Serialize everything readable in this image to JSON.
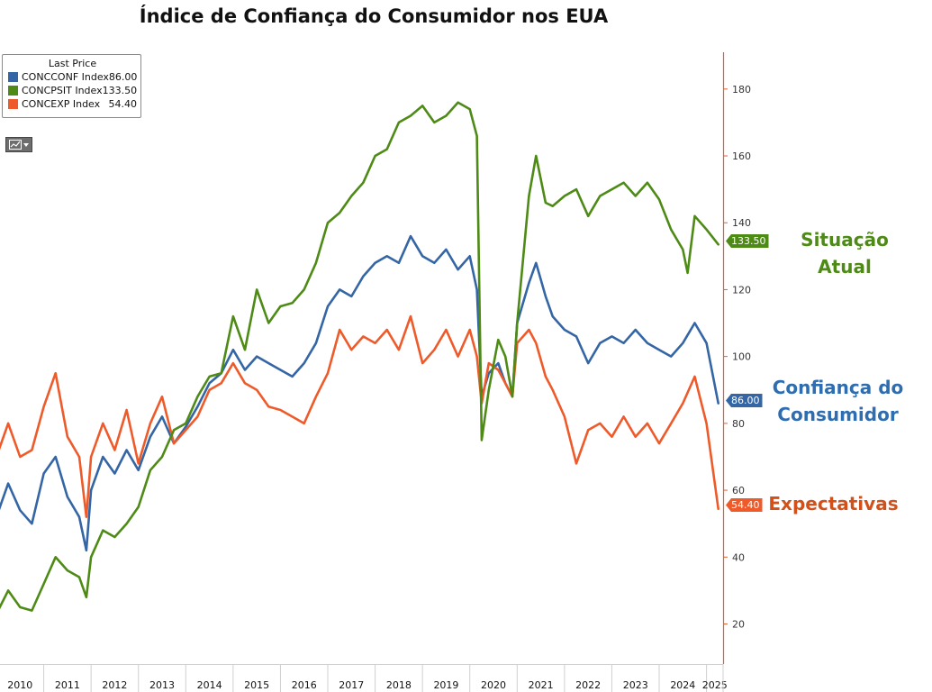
{
  "title": "Índice de Confiança do Consumidor nos EUA",
  "legend": {
    "header": "Last Price",
    "items": [
      {
        "name": "CONCCONF Index",
        "value": "86.00",
        "color": "#3465a4"
      },
      {
        "name": "CONCPSIT Index",
        "value": "133.50",
        "color": "#4e8a16"
      },
      {
        "name": "CONCEXP Index",
        "value": "54.40",
        "color": "#ee5a2a"
      }
    ]
  },
  "toolbar": {
    "chart_type_icon": "line-chart-icon"
  },
  "annotations": {
    "situacao": "Situação Atual",
    "confianca_line1": "Confiança do",
    "confianca_line2": "Consumidor",
    "expectativas": "Expectativas"
  },
  "colors": {
    "axis": "#ee5a2a",
    "grid": "#d0d0d0",
    "label_green": "#4e8a16",
    "label_blue": "#2e6db0",
    "label_orange": "#d2501a"
  },
  "chart_data": {
    "type": "line",
    "title": "Índice de Confiança do Consumidor nos EUA",
    "x_ticks": [
      "2010",
      "2011",
      "2012",
      "2013",
      "2014",
      "2015",
      "2016",
      "2017",
      "2018",
      "2019",
      "2020",
      "2021",
      "2022",
      "2023",
      "2024",
      "2025"
    ],
    "xlim": [
      2010.0,
      2025.35
    ],
    "y_ticks": [
      20,
      40,
      60,
      80,
      100,
      120,
      140,
      160,
      180
    ],
    "ylim": [
      8,
      191
    ],
    "series": [
      {
        "name": "CONCPSIT Index",
        "color": "#4e8a16",
        "last_value": "133.50",
        "points": [
          [
            2010.0,
            23
          ],
          [
            2010.25,
            30
          ],
          [
            2010.5,
            25
          ],
          [
            2010.75,
            24
          ],
          [
            2011.0,
            32
          ],
          [
            2011.25,
            40
          ],
          [
            2011.5,
            36
          ],
          [
            2011.75,
            34
          ],
          [
            2011.9,
            28
          ],
          [
            2012.0,
            40
          ],
          [
            2012.25,
            48
          ],
          [
            2012.5,
            46
          ],
          [
            2012.75,
            50
          ],
          [
            2013.0,
            55
          ],
          [
            2013.25,
            66
          ],
          [
            2013.5,
            70
          ],
          [
            2013.75,
            78
          ],
          [
            2014.0,
            80
          ],
          [
            2014.25,
            88
          ],
          [
            2014.5,
            94
          ],
          [
            2014.75,
            95
          ],
          [
            2015.0,
            112
          ],
          [
            2015.25,
            102
          ],
          [
            2015.5,
            120
          ],
          [
            2015.75,
            110
          ],
          [
            2016.0,
            115
          ],
          [
            2016.25,
            116
          ],
          [
            2016.5,
            120
          ],
          [
            2016.75,
            128
          ],
          [
            2017.0,
            140
          ],
          [
            2017.25,
            143
          ],
          [
            2017.5,
            148
          ],
          [
            2017.75,
            152
          ],
          [
            2018.0,
            160
          ],
          [
            2018.25,
            162
          ],
          [
            2018.5,
            170
          ],
          [
            2018.75,
            172
          ],
          [
            2019.0,
            175
          ],
          [
            2019.25,
            170
          ],
          [
            2019.5,
            172
          ],
          [
            2019.75,
            176
          ],
          [
            2020.0,
            174
          ],
          [
            2020.15,
            166
          ],
          [
            2020.25,
            75
          ],
          [
            2020.4,
            90
          ],
          [
            2020.6,
            105
          ],
          [
            2020.75,
            100
          ],
          [
            2020.9,
            88
          ],
          [
            2021.0,
            110
          ],
          [
            2021.25,
            148
          ],
          [
            2021.4,
            160
          ],
          [
            2021.6,
            146
          ],
          [
            2021.75,
            145
          ],
          [
            2022.0,
            148
          ],
          [
            2022.25,
            150
          ],
          [
            2022.5,
            142
          ],
          [
            2022.75,
            148
          ],
          [
            2023.0,
            150
          ],
          [
            2023.25,
            152
          ],
          [
            2023.5,
            148
          ],
          [
            2023.75,
            152
          ],
          [
            2024.0,
            147
          ],
          [
            2024.25,
            138
          ],
          [
            2024.5,
            132
          ],
          [
            2024.6,
            125
          ],
          [
            2024.75,
            142
          ],
          [
            2025.0,
            138
          ],
          [
            2025.25,
            133.5
          ]
        ]
      },
      {
        "name": "CONCCONF Index",
        "color": "#3465a4",
        "last_value": "86.00",
        "points": [
          [
            2010.0,
            52
          ],
          [
            2010.25,
            62
          ],
          [
            2010.5,
            54
          ],
          [
            2010.75,
            50
          ],
          [
            2011.0,
            65
          ],
          [
            2011.25,
            70
          ],
          [
            2011.5,
            58
          ],
          [
            2011.75,
            52
          ],
          [
            2011.9,
            42
          ],
          [
            2012.0,
            60
          ],
          [
            2012.25,
            70
          ],
          [
            2012.5,
            65
          ],
          [
            2012.75,
            72
          ],
          [
            2013.0,
            66
          ],
          [
            2013.25,
            76
          ],
          [
            2013.5,
            82
          ],
          [
            2013.75,
            74
          ],
          [
            2014.0,
            79
          ],
          [
            2014.25,
            85
          ],
          [
            2014.5,
            92
          ],
          [
            2014.75,
            95
          ],
          [
            2015.0,
            102
          ],
          [
            2015.25,
            96
          ],
          [
            2015.5,
            100
          ],
          [
            2015.75,
            98
          ],
          [
            2016.0,
            96
          ],
          [
            2016.25,
            94
          ],
          [
            2016.5,
            98
          ],
          [
            2016.75,
            104
          ],
          [
            2017.0,
            115
          ],
          [
            2017.25,
            120
          ],
          [
            2017.5,
            118
          ],
          [
            2017.75,
            124
          ],
          [
            2018.0,
            128
          ],
          [
            2018.25,
            130
          ],
          [
            2018.5,
            128
          ],
          [
            2018.75,
            136
          ],
          [
            2019.0,
            130
          ],
          [
            2019.25,
            128
          ],
          [
            2019.5,
            132
          ],
          [
            2019.75,
            126
          ],
          [
            2020.0,
            130
          ],
          [
            2020.15,
            120
          ],
          [
            2020.25,
            88
          ],
          [
            2020.4,
            95
          ],
          [
            2020.6,
            98
          ],
          [
            2020.75,
            92
          ],
          [
            2020.9,
            88
          ],
          [
            2021.0,
            110
          ],
          [
            2021.25,
            122
          ],
          [
            2021.4,
            128
          ],
          [
            2021.6,
            118
          ],
          [
            2021.75,
            112
          ],
          [
            2022.0,
            108
          ],
          [
            2022.25,
            106
          ],
          [
            2022.5,
            98
          ],
          [
            2022.75,
            104
          ],
          [
            2023.0,
            106
          ],
          [
            2023.25,
            104
          ],
          [
            2023.5,
            108
          ],
          [
            2023.75,
            104
          ],
          [
            2024.0,
            102
          ],
          [
            2024.25,
            100
          ],
          [
            2024.5,
            104
          ],
          [
            2024.75,
            110
          ],
          [
            2025.0,
            104
          ],
          [
            2025.25,
            86
          ]
        ]
      },
      {
        "name": "CONCEXP Index",
        "color": "#ee5a2a",
        "last_value": "54.40",
        "points": [
          [
            2010.0,
            70
          ],
          [
            2010.25,
            80
          ],
          [
            2010.5,
            70
          ],
          [
            2010.75,
            72
          ],
          [
            2011.0,
            85
          ],
          [
            2011.25,
            95
          ],
          [
            2011.5,
            76
          ],
          [
            2011.75,
            70
          ],
          [
            2011.9,
            52
          ],
          [
            2012.0,
            70
          ],
          [
            2012.25,
            80
          ],
          [
            2012.5,
            72
          ],
          [
            2012.75,
            84
          ],
          [
            2013.0,
            68
          ],
          [
            2013.25,
            80
          ],
          [
            2013.5,
            88
          ],
          [
            2013.75,
            74
          ],
          [
            2014.0,
            78
          ],
          [
            2014.25,
            82
          ],
          [
            2014.5,
            90
          ],
          [
            2014.75,
            92
          ],
          [
            2015.0,
            98
          ],
          [
            2015.25,
            92
          ],
          [
            2015.5,
            90
          ],
          [
            2015.75,
            85
          ],
          [
            2016.0,
            84
          ],
          [
            2016.25,
            82
          ],
          [
            2016.5,
            80
          ],
          [
            2016.75,
            88
          ],
          [
            2017.0,
            95
          ],
          [
            2017.25,
            108
          ],
          [
            2017.5,
            102
          ],
          [
            2017.75,
            106
          ],
          [
            2018.0,
            104
          ],
          [
            2018.25,
            108
          ],
          [
            2018.5,
            102
          ],
          [
            2018.75,
            112
          ],
          [
            2019.0,
            98
          ],
          [
            2019.25,
            102
          ],
          [
            2019.5,
            108
          ],
          [
            2019.75,
            100
          ],
          [
            2020.0,
            108
          ],
          [
            2020.15,
            100
          ],
          [
            2020.25,
            86
          ],
          [
            2020.4,
            98
          ],
          [
            2020.6,
            96
          ],
          [
            2020.75,
            92
          ],
          [
            2020.9,
            88
          ],
          [
            2021.0,
            104
          ],
          [
            2021.25,
            108
          ],
          [
            2021.4,
            104
          ],
          [
            2021.6,
            94
          ],
          [
            2021.75,
            90
          ],
          [
            2022.0,
            82
          ],
          [
            2022.25,
            68
          ],
          [
            2022.5,
            78
          ],
          [
            2022.75,
            80
          ],
          [
            2023.0,
            76
          ],
          [
            2023.25,
            82
          ],
          [
            2023.5,
            76
          ],
          [
            2023.75,
            80
          ],
          [
            2024.0,
            74
          ],
          [
            2024.25,
            80
          ],
          [
            2024.5,
            86
          ],
          [
            2024.75,
            94
          ],
          [
            2025.0,
            80
          ],
          [
            2025.25,
            54.4
          ]
        ]
      }
    ]
  }
}
